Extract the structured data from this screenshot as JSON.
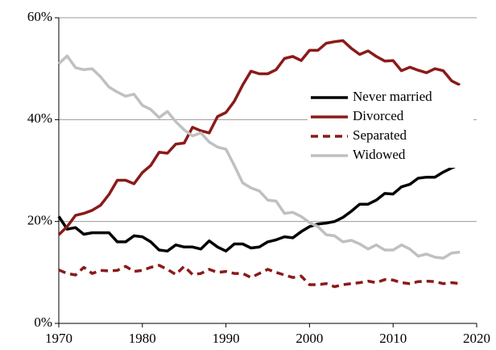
{
  "chart_data": {
    "type": "line",
    "x": [
      1970,
      1971,
      1972,
      1973,
      1974,
      1975,
      1976,
      1977,
      1978,
      1979,
      1980,
      1981,
      1982,
      1983,
      1984,
      1985,
      1986,
      1987,
      1988,
      1989,
      1990,
      1991,
      1992,
      1993,
      1994,
      1995,
      1996,
      1997,
      1998,
      1999,
      2000,
      2001,
      2002,
      2003,
      2004,
      2005,
      2006,
      2007,
      2008,
      2009,
      2010,
      2011,
      2012,
      2013,
      2014,
      2015,
      2016,
      2017,
      2018
    ],
    "series": [
      {
        "name": "Never married",
        "color": "#000000",
        "dash": false,
        "values": [
          21,
          18.5,
          18.8,
          17.5,
          17.8,
          17.8,
          17.8,
          16,
          16,
          17.2,
          17,
          16,
          14.4,
          14.2,
          15.4,
          15,
          15,
          14.6,
          16.2,
          15,
          14.2,
          15.6,
          15.6,
          14.8,
          15,
          16,
          16.4,
          17,
          16.8,
          18,
          19,
          19.5,
          19.7,
          20,
          20.8,
          22,
          23.4,
          23.4,
          24.2,
          25.5,
          25.4,
          26.8,
          27.3,
          28.5,
          28.7,
          28.7,
          29.7,
          30.5,
          31.2
        ]
      },
      {
        "name": "Divorced",
        "color": "#8b1a1a",
        "dash": false,
        "values": [
          17.4,
          19,
          21.2,
          21.6,
          22.2,
          23.2,
          25.3,
          28.1,
          28.1,
          27.4,
          29.6,
          31,
          33.6,
          33.4,
          35.2,
          35.4,
          38.5,
          37.8,
          37.4,
          40.6,
          41.4,
          43.6,
          46.8,
          49.5,
          49,
          49,
          49.8,
          52,
          52.4,
          51.6,
          53.6,
          53.6,
          55,
          55.3,
          55.5,
          54,
          52.8,
          53.5,
          52.4,
          51.5,
          51.6,
          49.6,
          50.3,
          49.7,
          49.2,
          50,
          49.6,
          47.6,
          46.8
        ]
      },
      {
        "name": "Separated",
        "color": "#8b1a1a",
        "dash": true,
        "values": [
          10.5,
          9.8,
          9.5,
          11,
          9.8,
          10.4,
          10.3,
          10.4,
          11.2,
          10.2,
          10.4,
          11,
          11.4,
          10.6,
          9.6,
          11.2,
          9.6,
          9.8,
          10.6,
          10,
          10.2,
          9.8,
          9.8,
          9,
          9.8,
          10.6,
          10,
          9.5,
          9,
          9.3,
          7.6,
          7.6,
          7.8,
          7.2,
          7.6,
          7.8,
          8,
          8.3,
          8,
          8.6,
          8.5,
          8,
          7.8,
          8.2,
          8.3,
          8.2,
          7.8,
          8,
          7.8
        ]
      },
      {
        "name": "Widowed",
        "color": "#c0c0c0",
        "dash": false,
        "values": [
          51,
          52.5,
          50.2,
          49.8,
          50,
          48.4,
          46.4,
          45.4,
          44.6,
          45,
          42.8,
          42,
          40.4,
          41.6,
          39.6,
          38,
          36.8,
          37.4,
          35.6,
          34.6,
          34.2,
          31,
          27.6,
          26.6,
          26,
          24.2,
          24,
          21.6,
          21.8,
          21,
          19.8,
          19,
          17.4,
          17.2,
          16,
          16.3,
          15.6,
          14.6,
          15.4,
          14.4,
          14.4,
          15.4,
          14.6,
          13.2,
          13.6,
          13,
          12.8,
          13.8,
          14
        ]
      }
    ],
    "xlim": [
      1970,
      2020
    ],
    "xticks": [
      1970,
      1980,
      1990,
      2000,
      2010,
      2020
    ],
    "ylim": [
      0,
      60
    ],
    "yticks": [
      {
        "value": 0,
        "label": "0%"
      },
      {
        "value": 20,
        "label": "20%"
      },
      {
        "value": 40,
        "label": "40%"
      },
      {
        "value": 60,
        "label": "60%"
      }
    ],
    "grid": true,
    "legend": "upper right"
  }
}
